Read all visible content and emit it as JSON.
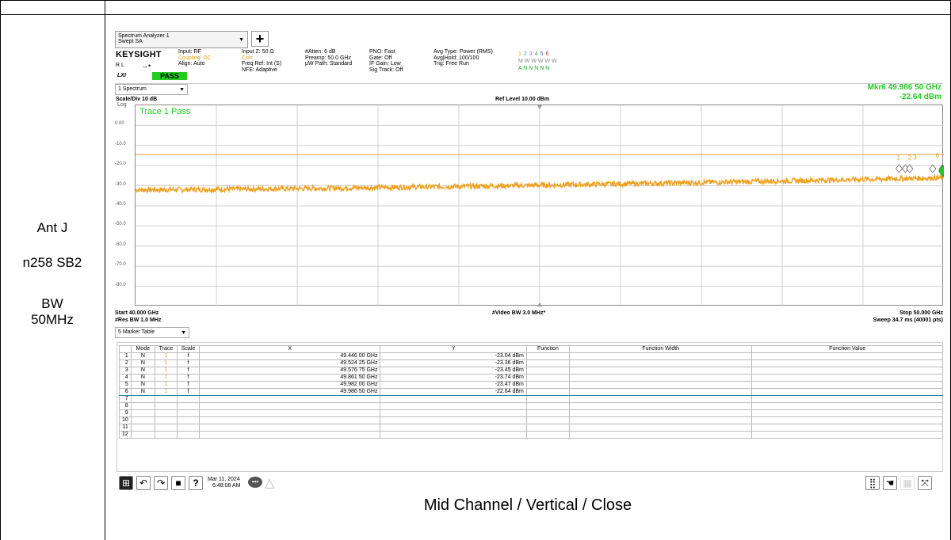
{
  "left_column": {
    "antenna": "Ant J",
    "band": "n258 SB2",
    "bw_label": "BW",
    "bw_value": "50MHz"
  },
  "caption": "Mid Channel / Vertical / Close",
  "analyzer": {
    "mode_title": "Spectrum Analyzer 1",
    "mode_sub": "Swept SA",
    "logo": "KEYSIGHT",
    "rl": "R L",
    "lxi": "LXI",
    "pass_label": "PASS",
    "input_col": [
      "Input: RF",
      "Coupling: DC",
      "Align: Auto"
    ],
    "input2_col": [
      "Input Z: 50 Ω",
      "Corr",
      "Freq Ref: Int (S)",
      "NFE: Adaptive"
    ],
    "atten_col": [
      "#Atten: 6 dB",
      "Preamp: 50.0 GHz",
      "μW Path: Standard"
    ],
    "pno_col": [
      "PNO: Fast",
      "Gate: Off",
      "IF Gain: Low",
      "Sig Track: Off"
    ],
    "avg_col": [
      "Avg Type: Power (RMS)",
      "Avg|Hold: 100/100",
      "Trig: Free Run"
    ],
    "trace_nums": [
      "1",
      "2",
      "3",
      "4",
      "5",
      "6"
    ],
    "trace_row2": "M W W W W W",
    "trace_row3": "A N N N N N",
    "window_select": "1 Spectrum",
    "marker_readout_freq": "Mkr6  49.986 50 GHz",
    "marker_readout_amp": "-22.64 dBm",
    "scale_div": "Scale/Div 10 dB",
    "log": "Log",
    "ref_level": "Ref Level 10.00 dBm",
    "trace_pass": "Trace 1 Pass",
    "start_freq": "Start 40.000 GHz",
    "res_bw": "#Res BW 1.0 MHz",
    "video_bw": "#Video BW 3.0 MHz*",
    "stop_freq": "Stop 50.000 GHz",
    "sweep": "Sweep 34.7 ms (40001 pts)",
    "table_select": "5 Marker Table",
    "datetime_date": "Mar 11, 2024",
    "datetime_time": "6:48:08 AM",
    "marker_labels": [
      "1",
      "2",
      "3",
      "6"
    ],
    "colors": {
      "trace": "#f0a020",
      "limit": "#e0a040",
      "readout": "#22cc22",
      "pass_bg": "#22cc22"
    }
  },
  "chart_data": {
    "type": "line",
    "xlim": [
      40.0,
      50.0
    ],
    "ylim": [
      -90,
      10
    ],
    "ytick_labels": [
      "0.00",
      "-10.0",
      "-20.0",
      "-30.0",
      "-40.0",
      "-50.0",
      "-60.0",
      "-70.0",
      "-80.0"
    ],
    "limit_line_dbm": -14.5,
    "trace_start_dbm": -32,
    "trace_end_dbm": -26
  },
  "marker_table": {
    "headers": [
      "",
      "Mode",
      "Trace",
      "Scale",
      "X",
      "Y",
      "Function",
      "Function Width",
      "Function Value"
    ],
    "rows": [
      [
        "1",
        "N",
        "1",
        "f",
        "49.446 00 GHz",
        "-23.04 dBm",
        "",
        "",
        ""
      ],
      [
        "2",
        "N",
        "1",
        "f",
        "49.524 25 GHz",
        "-23.36 dBm",
        "",
        "",
        ""
      ],
      [
        "3",
        "N",
        "1",
        "f",
        "49.576 75 GHz",
        "-23.45 dBm",
        "",
        "",
        ""
      ],
      [
        "4",
        "N",
        "1",
        "f",
        "49.861 50 GHz",
        "-23.74 dBm",
        "",
        "",
        ""
      ],
      [
        "5",
        "N",
        "1",
        "f",
        "49.982 00 GHz",
        "-23.47 dBm",
        "",
        "",
        ""
      ],
      [
        "6",
        "N",
        "1",
        "f",
        "49.986 50 GHz",
        "-22.64 dBm",
        "",
        "",
        ""
      ],
      [
        "7",
        "",
        "",
        "",
        "",
        "",
        "",
        "",
        ""
      ],
      [
        "8",
        "",
        "",
        "",
        "",
        "",
        "",
        "",
        ""
      ],
      [
        "9",
        "",
        "",
        "",
        "",
        "",
        "",
        "",
        ""
      ],
      [
        "10",
        "",
        "",
        "",
        "",
        "",
        "",
        "",
        ""
      ],
      [
        "11",
        "",
        "",
        "",
        "",
        "",
        "",
        "",
        ""
      ],
      [
        "12",
        "",
        "",
        "",
        "",
        "",
        "",
        "",
        ""
      ]
    ]
  }
}
